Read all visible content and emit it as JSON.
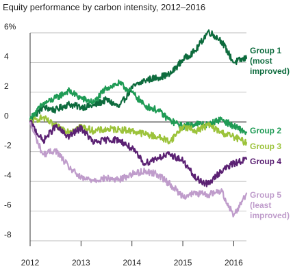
{
  "chart_data": {
    "type": "line",
    "title": "Equity performance by carbon intensity, 2012–2016",
    "xlabel": "",
    "ylabel": "",
    "x": [
      2012,
      2012.25,
      2012.5,
      2012.75,
      2013,
      2013.25,
      2013.5,
      2013.75,
      2014,
      2014.25,
      2014.5,
      2014.75,
      2015,
      2015.25,
      2015.5,
      2015.75,
      2016,
      2016.25
    ],
    "xlim": [
      2012,
      2016.25
    ],
    "ylim": [
      -8,
      6
    ],
    "x_ticks": [
      {
        "value": 2012,
        "label": "2012"
      },
      {
        "value": 2013,
        "label": "2013"
      },
      {
        "value": 2014,
        "label": "2014"
      },
      {
        "value": 2015,
        "label": "2015"
      },
      {
        "value": 2016,
        "label": "2016"
      }
    ],
    "y_ticks": [
      {
        "value": 6,
        "label": "6%"
      },
      {
        "value": 4,
        "label": "4"
      },
      {
        "value": 2,
        "label": "2"
      },
      {
        "value": 0,
        "label": "0"
      },
      {
        "value": -2,
        "label": "-2"
      },
      {
        "value": -4,
        "label": "-4"
      },
      {
        "value": -6,
        "label": "-6"
      },
      {
        "value": -8,
        "label": "-8"
      }
    ],
    "grid": true,
    "legend_position": "right",
    "series": [
      {
        "name": "Group 1 (most improved)",
        "legend_lines": [
          "Group 1",
          "(most",
          "improved)"
        ],
        "color": "#0d6b3d",
        "values": [
          0.1,
          1.0,
          0.8,
          1.2,
          1.0,
          1.1,
          1.5,
          1.0,
          2.3,
          2.8,
          3.0,
          3.2,
          4.2,
          4.8,
          6.1,
          5.5,
          4.0,
          4.3
        ]
      },
      {
        "name": "Group 2",
        "legend_lines": [
          "Group 2"
        ],
        "color": "#1f9b55",
        "values": [
          0.2,
          1.2,
          1.6,
          2.1,
          1.6,
          1.3,
          2.3,
          2.6,
          2.0,
          1.1,
          0.8,
          0.1,
          -0.3,
          -0.1,
          -0.2,
          0.2,
          -0.3,
          -0.7
        ]
      },
      {
        "name": "Group 3",
        "legend_lines": [
          "Group 3"
        ],
        "color": "#9cc33b",
        "values": [
          0.0,
          0.3,
          -0.3,
          -0.6,
          -0.3,
          -0.6,
          -0.5,
          -0.5,
          -0.6,
          -0.8,
          -1.0,
          -1.3,
          -0.3,
          -0.6,
          -0.2,
          -0.7,
          -1.0,
          -1.4
        ]
      },
      {
        "name": "Group 4",
        "legend_lines": [
          "Group 4"
        ],
        "color": "#5b2173",
        "values": [
          0.0,
          -1.3,
          -0.3,
          -1.0,
          -0.4,
          -1.4,
          -1.2,
          -1.2,
          -1.8,
          -2.8,
          -2.4,
          -2.2,
          -2.6,
          -3.8,
          -4.2,
          -3.3,
          -2.8,
          -2.5
        ]
      },
      {
        "name": "Group 5 (least improved)",
        "legend_lines": [
          "Group 5",
          "(least",
          "improved)"
        ],
        "color": "#bf9ccb",
        "values": [
          -0.1,
          -2.2,
          -1.9,
          -3.0,
          -3.8,
          -3.9,
          -3.8,
          -3.9,
          -3.5,
          -3.3,
          -3.5,
          -4.2,
          -5.0,
          -4.8,
          -4.9,
          -4.6,
          -6.3,
          -4.8
        ]
      }
    ]
  }
}
